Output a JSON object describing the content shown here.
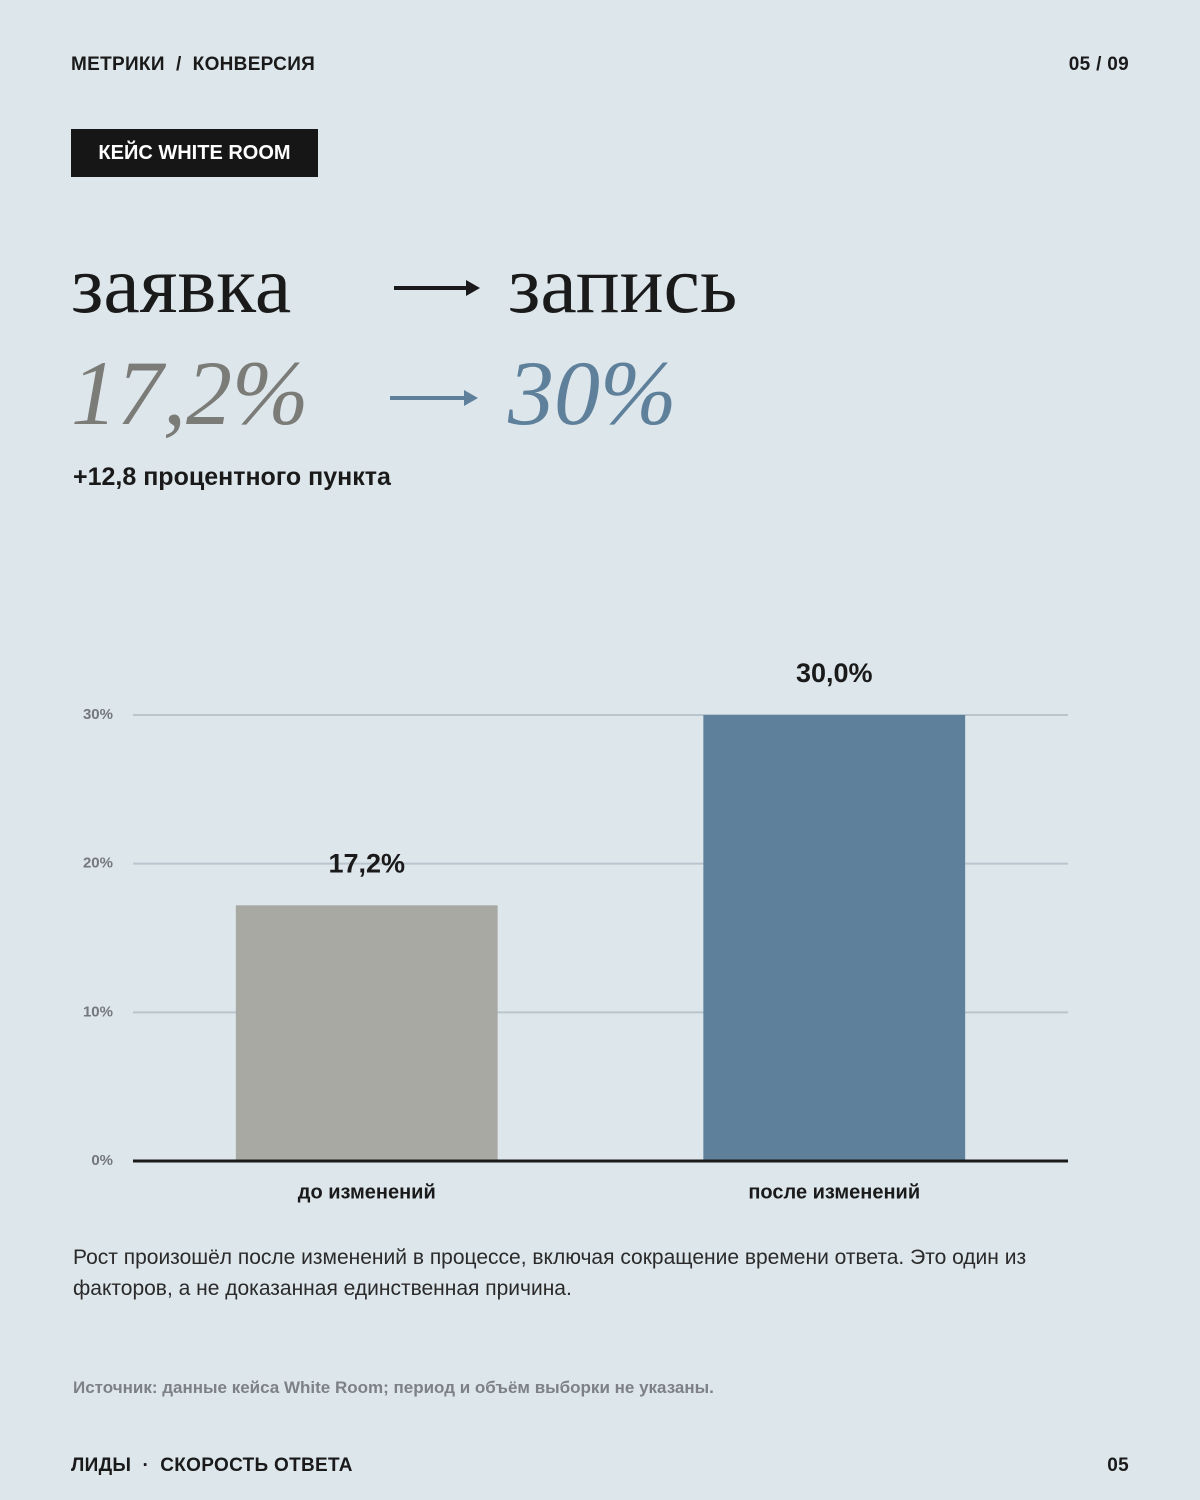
{
  "header": {
    "breadcrumb": "МЕТРИКИ  /  КОНВЕРСИЯ",
    "page": "05 / 09"
  },
  "badge": "КЕЙС WHITE ROOM",
  "headline": {
    "from": "заявка",
    "to": "запись",
    "from_value": "17,2%",
    "to_value": "30%",
    "delta": "+12,8 процентного пункта"
  },
  "chart_data": {
    "type": "bar",
    "categories": [
      "до изменений",
      "после изменений"
    ],
    "values": [
      17.2,
      30
    ],
    "value_labels": [
      "17,2%",
      "30,0%"
    ],
    "colors": [
      "#a9a9a4",
      "#5f809b"
    ],
    "ylim": [
      0,
      30
    ],
    "yticks": [
      {
        "value": 0,
        "label": "0%"
      },
      {
        "value": 10,
        "label": "10%"
      },
      {
        "value": 20,
        "label": "20%"
      },
      {
        "value": 30,
        "label": "30%"
      }
    ],
    "grid": true
  },
  "note": "Рост произошёл после изменений в процессе, включая сокращение времени ответа. Это один из факторов, а не доказанная единственная причина.",
  "source": "Источник: данные кейса White Room; период и объём выборки не указаны.",
  "footer": {
    "section": "ЛИДЫ  ·  СКОРОСТЬ ОТВЕТА",
    "page": "05"
  }
}
